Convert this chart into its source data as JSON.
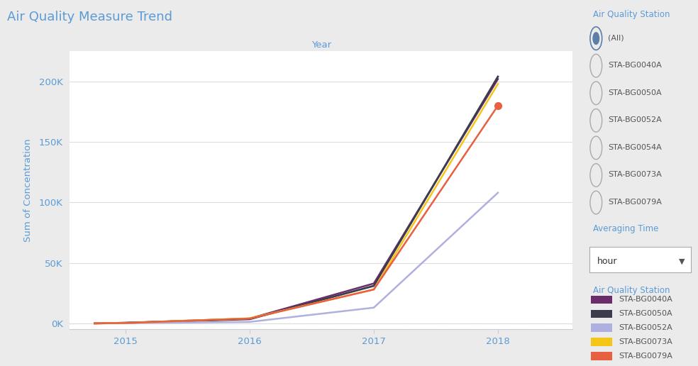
{
  "title": "Air Quality Measure Trend",
  "xlabel": "Year",
  "ylabel": "Sum of Concentration",
  "years": [
    2014.75,
    2015,
    2016,
    2017,
    2018
  ],
  "series": [
    {
      "label": "STA-BG0040A",
      "color": "#6B2D6B",
      "linewidth": 1.8,
      "values": [
        0,
        500,
        4000,
        33000,
        202000
      ],
      "marker": null
    },
    {
      "label": "STA-BG0050A",
      "color": "#3C3C4C",
      "linewidth": 2.0,
      "values": [
        0,
        400,
        3500,
        31000,
        204000
      ],
      "marker": null
    },
    {
      "label": "STA-BG0052A",
      "color": "#B0B0E0",
      "linewidth": 1.8,
      "values": [
        0,
        200,
        1200,
        13000,
        108000
      ],
      "marker": null
    },
    {
      "label": "STA-BG0073A",
      "color": "#F5C518",
      "linewidth": 1.8,
      "values": [
        0,
        300,
        4200,
        28000,
        198000
      ],
      "marker": null
    },
    {
      "label": "STA-BG0079A",
      "color": "#E86040",
      "linewidth": 1.8,
      "values": [
        0,
        300,
        4000,
        28000,
        180000
      ],
      "marker": "o",
      "markersize": 7
    }
  ],
  "xlim": [
    2014.55,
    2018.6
  ],
  "ylim": [
    -5000,
    225000
  ],
  "yticks": [
    0,
    50000,
    100000,
    150000,
    200000
  ],
  "ytick_labels": [
    "0K",
    "50K",
    "100K",
    "150K",
    "200K"
  ],
  "xticks": [
    2015,
    2016,
    2017,
    2018
  ],
  "bg_color": "#FFFFFF",
  "grid_color": "#DDDDDD",
  "title_color": "#5B9BD5",
  "axis_label_color": "#5B9BD5",
  "tick_color": "#5B9BD5",
  "panel_bg": "#EBEBEB",
  "sidebar_title": "Air Quality Station",
  "sidebar_filter_labels": [
    "(All)",
    "STA-BG0040A",
    "STA-BG0050A",
    "STA-BG0052A",
    "STA-BG0054A",
    "STA-BG0073A",
    "STA-BG0079A"
  ],
  "averaging_time_label": "Averaging Time",
  "averaging_time_value": "hour",
  "legend_title": "Air Quality Station",
  "legend_colors": [
    "#6B2D6B",
    "#3C3C4C",
    "#B0B0E0",
    "#F5C518",
    "#E86040"
  ],
  "legend_labels": [
    "STA-BG0040A",
    "STA-BG0050A",
    "STA-BG0052A",
    "STA-BG0073A",
    "STA-BG0079A"
  ]
}
